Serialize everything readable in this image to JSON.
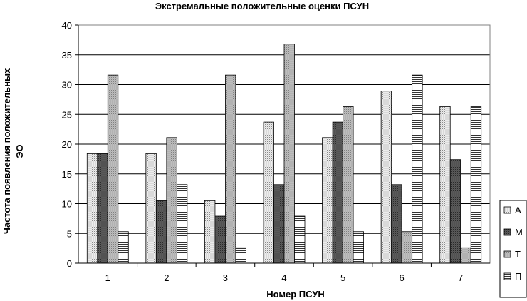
{
  "chart_data": {
    "type": "bar",
    "title": "Экстремальные положительные оценки ПСУН",
    "xlabel": "Номер ПСУН",
    "ylabel_line1": "Частота появления положительных",
    "ylabel_line2": "ЭО",
    "categories": [
      "1",
      "2",
      "3",
      "4",
      "5",
      "6",
      "7"
    ],
    "ylim": [
      0,
      40
    ],
    "yticks": [
      0,
      5,
      10,
      15,
      20,
      25,
      30,
      35,
      40
    ],
    "grid": true,
    "legend_position": "right",
    "series": [
      {
        "name": "А",
        "values": [
          18.4,
          18.4,
          10.5,
          23.7,
          21.1,
          28.9,
          26.3
        ]
      },
      {
        "name": "М",
        "values": [
          18.4,
          10.5,
          7.9,
          13.2,
          23.7,
          13.2,
          17.4
        ]
      },
      {
        "name": "Т",
        "values": [
          31.6,
          21.1,
          31.6,
          36.8,
          26.3,
          5.3,
          2.6
        ]
      },
      {
        "name": "П",
        "values": [
          5.3,
          13.2,
          2.6,
          7.9,
          5.3,
          31.6,
          26.3
        ]
      }
    ]
  }
}
